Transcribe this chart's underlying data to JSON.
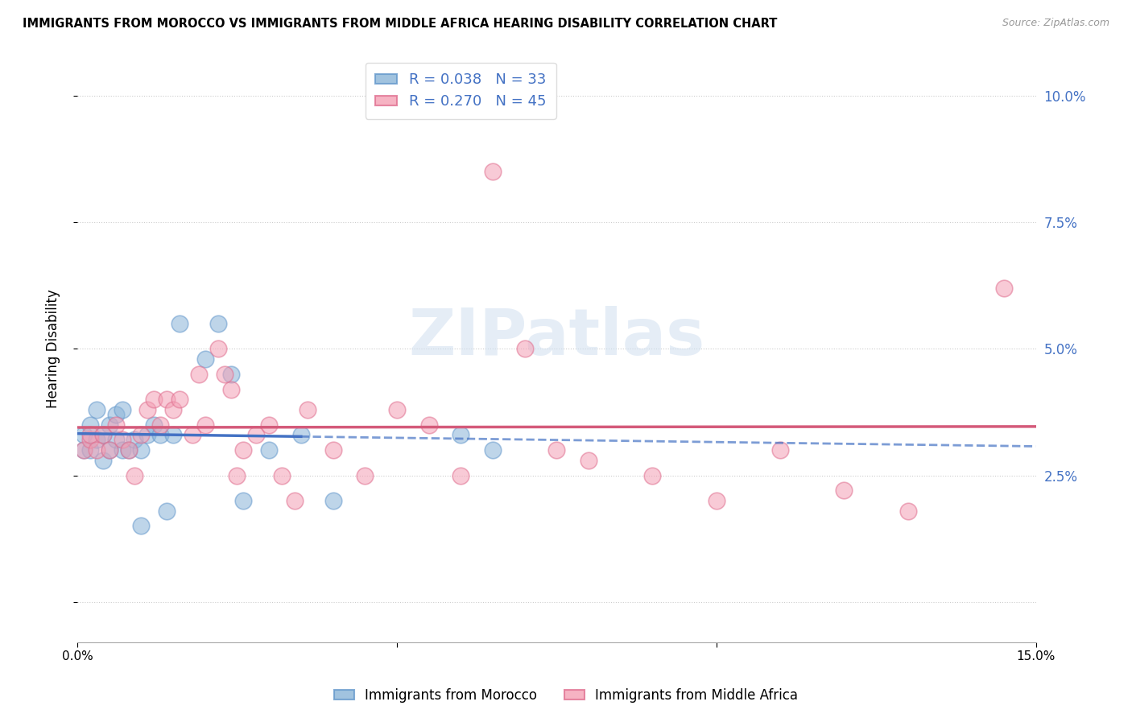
{
  "title": "IMMIGRANTS FROM MOROCCO VS IMMIGRANTS FROM MIDDLE AFRICA HEARING DISABILITY CORRELATION CHART",
  "source": "Source: ZipAtlas.com",
  "ylabel": "Hearing Disability",
  "xlim": [
    0.0,
    0.15
  ],
  "ylim": [
    -0.008,
    0.108
  ],
  "yticks": [
    0.0,
    0.025,
    0.05,
    0.075,
    0.1
  ],
  "yticklabels_right": [
    "",
    "2.5%",
    "5.0%",
    "7.5%",
    "10.0%"
  ],
  "xticks": [
    0.0,
    0.05,
    0.1,
    0.15
  ],
  "xticklabels": [
    "0.0%",
    "",
    "",
    "15.0%"
  ],
  "morocco_color": "#8ab4d8",
  "morocco_edge_color": "#6699cc",
  "middle_africa_color": "#f4a0b5",
  "middle_africa_edge_color": "#e07090",
  "morocco_line_color": "#4472c4",
  "middle_africa_line_color": "#d45a7a",
  "morocco_R": 0.038,
  "morocco_N": 33,
  "middle_africa_R": 0.27,
  "middle_africa_N": 45,
  "background_color": "#ffffff",
  "grid_color": "#cccccc",
  "tick_color": "#4472c4",
  "legend_label_morocco": "Immigrants from Morocco",
  "legend_label_middle_africa": "Immigrants from Middle Africa",
  "watermark": "ZIPatlas",
  "morocco_x": [
    0.001,
    0.001,
    0.002,
    0.002,
    0.003,
    0.003,
    0.004,
    0.004,
    0.005,
    0.005,
    0.006,
    0.006,
    0.007,
    0.007,
    0.008,
    0.009,
    0.01,
    0.01,
    0.011,
    0.012,
    0.013,
    0.014,
    0.015,
    0.016,
    0.02,
    0.022,
    0.024,
    0.026,
    0.03,
    0.035,
    0.04,
    0.06,
    0.065
  ],
  "morocco_y": [
    0.03,
    0.033,
    0.03,
    0.035,
    0.032,
    0.038,
    0.033,
    0.028,
    0.03,
    0.035,
    0.032,
    0.037,
    0.038,
    0.03,
    0.03,
    0.032,
    0.015,
    0.03,
    0.033,
    0.035,
    0.033,
    0.018,
    0.033,
    0.055,
    0.048,
    0.055,
    0.045,
    0.02,
    0.03,
    0.033,
    0.02,
    0.033,
    0.03
  ],
  "middle_africa_x": [
    0.001,
    0.002,
    0.002,
    0.003,
    0.004,
    0.005,
    0.006,
    0.007,
    0.008,
    0.009,
    0.01,
    0.011,
    0.012,
    0.013,
    0.014,
    0.015,
    0.016,
    0.018,
    0.019,
    0.02,
    0.022,
    0.023,
    0.024,
    0.025,
    0.026,
    0.028,
    0.03,
    0.032,
    0.034,
    0.036,
    0.04,
    0.045,
    0.05,
    0.055,
    0.06,
    0.065,
    0.07,
    0.075,
    0.08,
    0.09,
    0.1,
    0.11,
    0.12,
    0.13,
    0.145
  ],
  "middle_africa_y": [
    0.03,
    0.032,
    0.033,
    0.03,
    0.033,
    0.03,
    0.035,
    0.032,
    0.03,
    0.025,
    0.033,
    0.038,
    0.04,
    0.035,
    0.04,
    0.038,
    0.04,
    0.033,
    0.045,
    0.035,
    0.05,
    0.045,
    0.042,
    0.025,
    0.03,
    0.033,
    0.035,
    0.025,
    0.02,
    0.038,
    0.03,
    0.025,
    0.038,
    0.035,
    0.025,
    0.085,
    0.05,
    0.03,
    0.028,
    0.025,
    0.02,
    0.03,
    0.022,
    0.018,
    0.062
  ]
}
